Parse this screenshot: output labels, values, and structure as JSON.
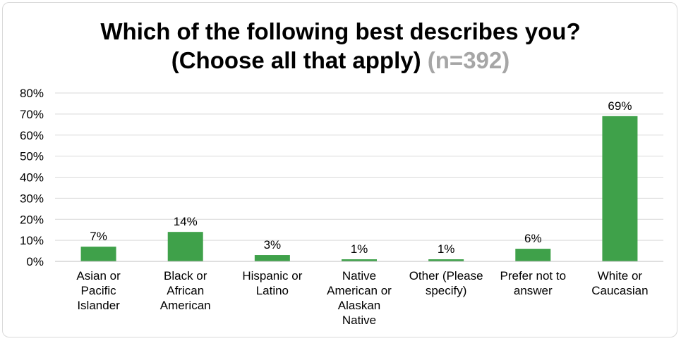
{
  "chart_data": {
    "type": "bar",
    "title_line1": "Which of the following best describes you?",
    "title_line2": "(Choose all that apply)",
    "title_n": "(n=392)",
    "categories": [
      [
        "Asian or",
        "Pacific",
        "Islander"
      ],
      [
        "Black or",
        "African",
        "American"
      ],
      [
        "Hispanic or",
        "Latino"
      ],
      [
        "Native",
        "American or",
        "Alaskan",
        "Native"
      ],
      [
        "Other (Please",
        "specify)"
      ],
      [
        "Prefer not to",
        "answer"
      ],
      [
        "White or",
        "Caucasian"
      ]
    ],
    "values": [
      7,
      14,
      3,
      1,
      1,
      6,
      69
    ],
    "data_labels": [
      "7%",
      "14%",
      "3%",
      "1%",
      "1%",
      "6%",
      "69%"
    ],
    "ylim": [
      0,
      80
    ],
    "yticks": [
      "0%",
      "10%",
      "20%",
      "30%",
      "40%",
      "50%",
      "60%",
      "70%",
      "80%"
    ],
    "grid": true,
    "legend": "none",
    "colors": {
      "bar": "#3fa14a",
      "grid": "#d9d9d9",
      "axis": "#bfbfbf"
    }
  }
}
